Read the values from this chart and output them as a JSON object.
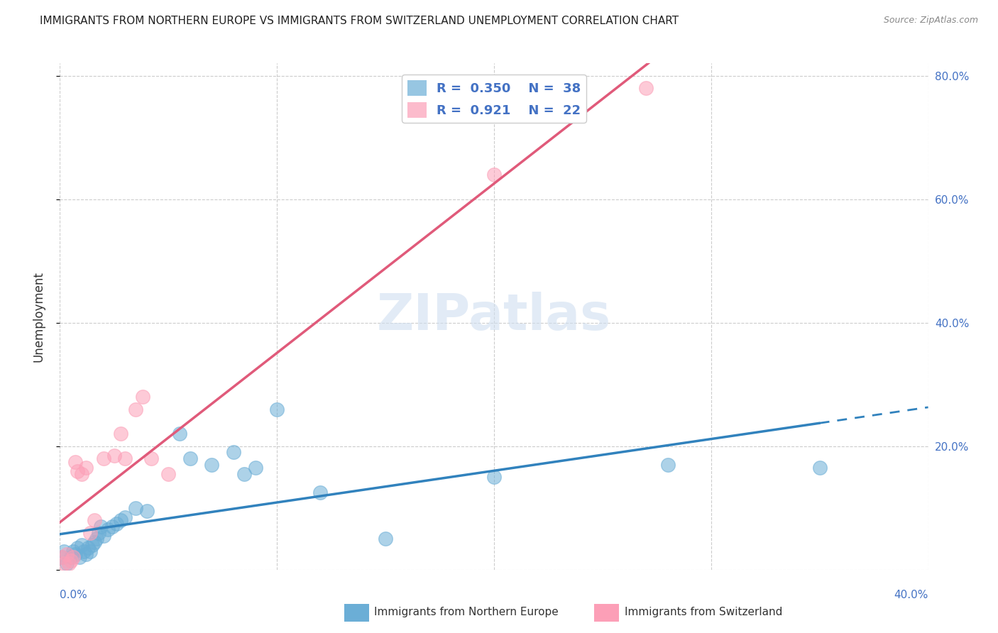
{
  "title": "IMMIGRANTS FROM NORTHERN EUROPE VS IMMIGRANTS FROM SWITZERLAND UNEMPLOYMENT CORRELATION CHART",
  "source": "Source: ZipAtlas.com",
  "ylabel": "Unemployment",
  "xlim": [
    0,
    0.4
  ],
  "ylim": [
    0,
    0.82
  ],
  "watermark": "ZIPatlas",
  "legend_r_blue": "0.350",
  "legend_n_blue": "38",
  "legend_r_pink": "0.921",
  "legend_n_pink": "22",
  "blue_scatter_x": [
    0.001,
    0.002,
    0.003,
    0.005,
    0.006,
    0.007,
    0.008,
    0.009,
    0.01,
    0.011,
    0.012,
    0.013,
    0.014,
    0.015,
    0.016,
    0.017,
    0.018,
    0.019,
    0.02,
    0.022,
    0.024,
    0.026,
    0.028,
    0.03,
    0.035,
    0.04,
    0.055,
    0.06,
    0.07,
    0.08,
    0.085,
    0.09,
    0.1,
    0.12,
    0.15,
    0.2,
    0.28,
    0.35
  ],
  "blue_scatter_y": [
    0.02,
    0.03,
    0.01,
    0.02,
    0.03,
    0.025,
    0.035,
    0.02,
    0.04,
    0.03,
    0.025,
    0.035,
    0.03,
    0.04,
    0.045,
    0.05,
    0.06,
    0.07,
    0.055,
    0.065,
    0.07,
    0.075,
    0.08,
    0.085,
    0.1,
    0.095,
    0.22,
    0.18,
    0.17,
    0.19,
    0.155,
    0.165,
    0.26,
    0.125,
    0.05,
    0.15,
    0.17,
    0.165
  ],
  "pink_scatter_x": [
    0.001,
    0.002,
    0.003,
    0.004,
    0.005,
    0.006,
    0.007,
    0.008,
    0.01,
    0.012,
    0.014,
    0.016,
    0.02,
    0.025,
    0.028,
    0.03,
    0.035,
    0.038,
    0.042,
    0.05,
    0.2,
    0.27
  ],
  "pink_scatter_y": [
    0.02,
    0.01,
    0.025,
    0.01,
    0.015,
    0.02,
    0.175,
    0.16,
    0.155,
    0.165,
    0.06,
    0.08,
    0.18,
    0.185,
    0.22,
    0.18,
    0.26,
    0.28,
    0.18,
    0.155,
    0.64,
    0.78
  ],
  "blue_color": "#6baed6",
  "blue_line_color": "#3182bd",
  "pink_color": "#fc9fb7",
  "pink_line_color": "#e05a7a",
  "title_color": "#333333",
  "axis_label_color": "#4472c4",
  "right_axis_color": "#4472c4",
  "grid_color": "#cccccc",
  "legend_label_blue": "Immigrants from Northern Europe",
  "legend_label_pink": "Immigrants from Switzerland"
}
